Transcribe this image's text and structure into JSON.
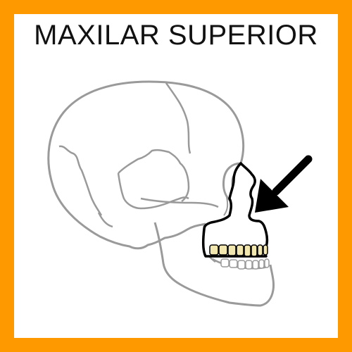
{
  "title": "MAXILAR SUPERIOR",
  "colors": {
    "frame": "#ff9900",
    "background": "#ffffff",
    "skull_outline": "#9a9a9a",
    "highlight_outline": "#000000",
    "teeth_fill": "#f3e7b0",
    "arrow": "#000000"
  },
  "icons": {
    "pointer": "arrow-down-left"
  }
}
